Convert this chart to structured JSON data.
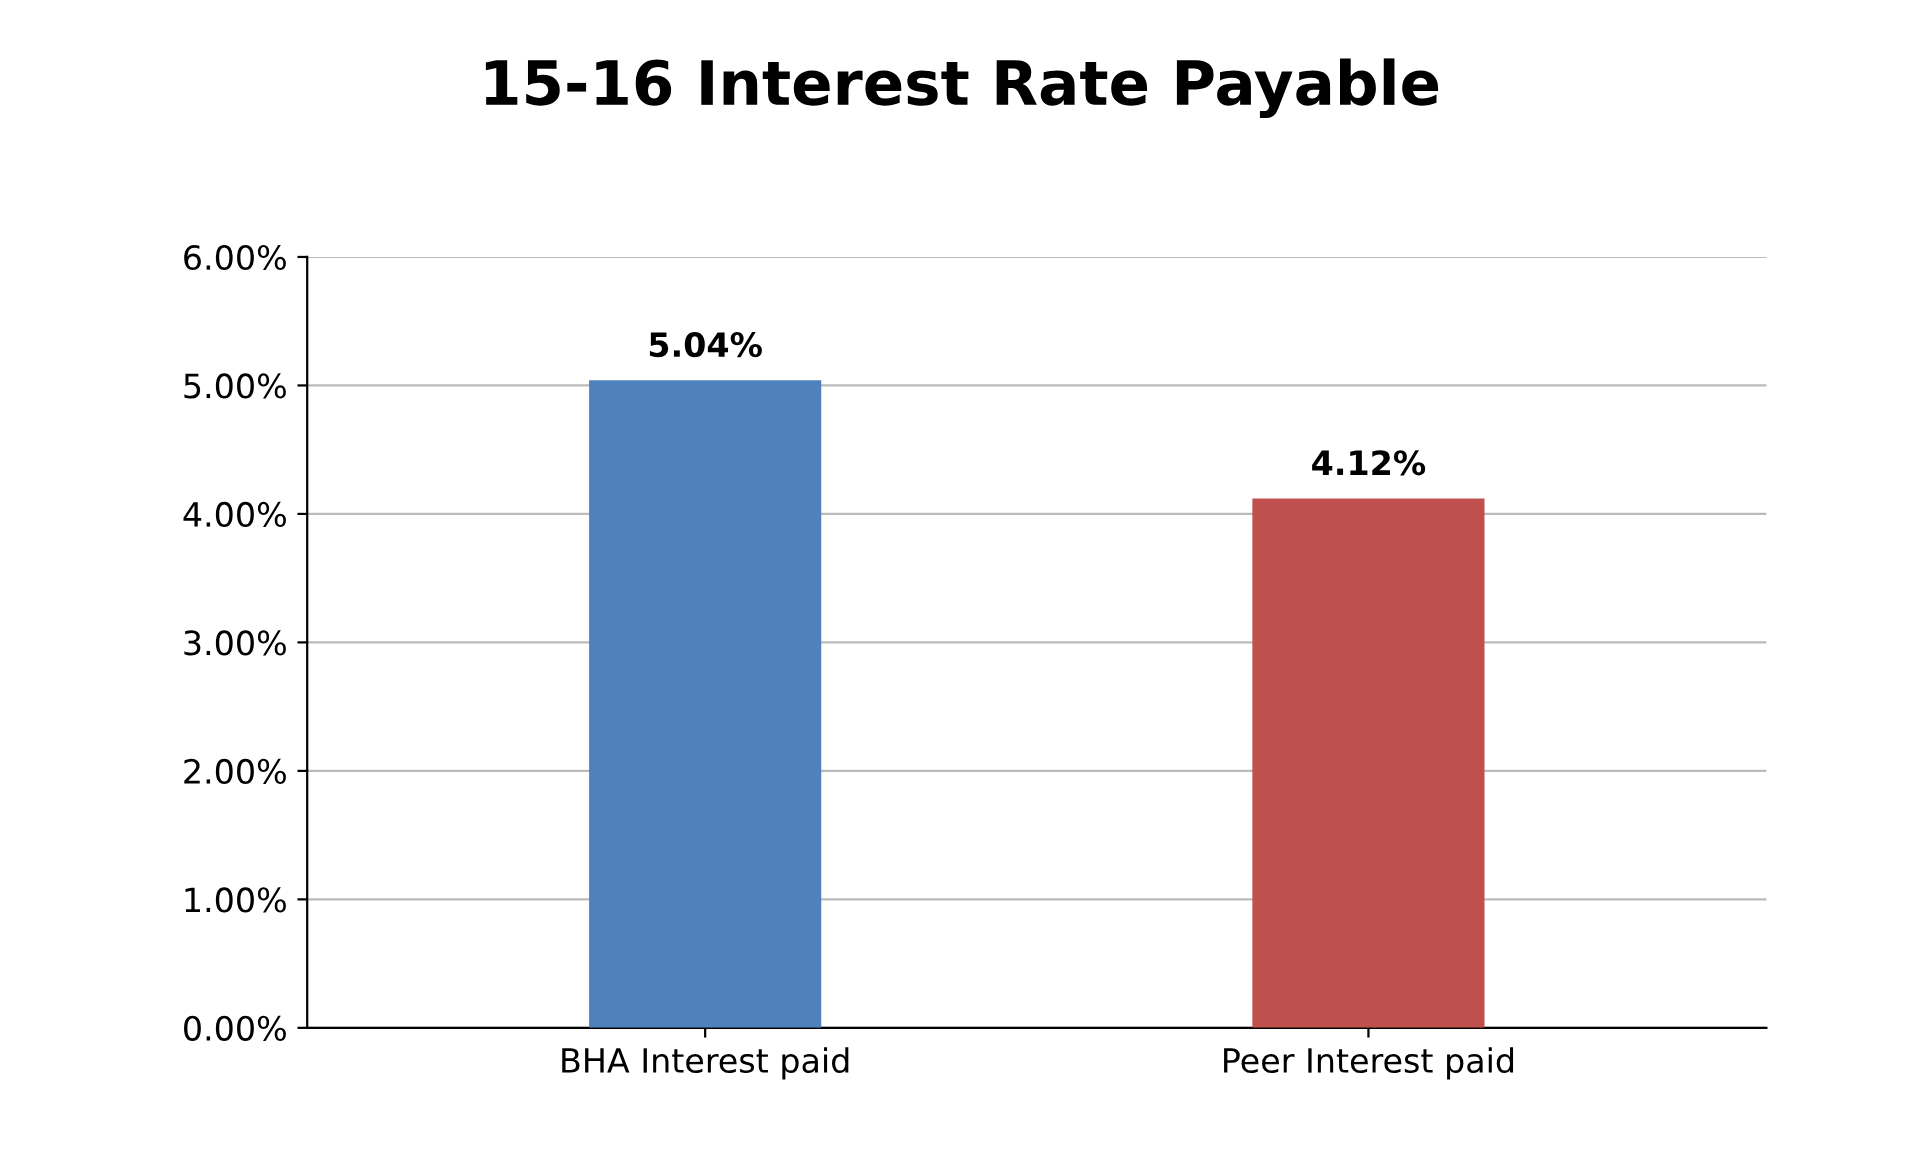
{
  "chart_data": {
    "type": "bar",
    "title": "15-16 Interest Rate Payable",
    "categories": [
      "BHA Interest paid",
      "Peer Interest paid"
    ],
    "values": [
      5.04,
      4.12
    ],
    "colors": [
      "#4f81bd",
      "#c0504d"
    ],
    "value_labels": [
      "5.04%",
      "4.12%"
    ],
    "ylim": [
      0,
      6
    ],
    "yticks": [
      {
        "value": 0,
        "label": "0.00%"
      },
      {
        "value": 1,
        "label": "1.00%"
      },
      {
        "value": 2,
        "label": "2.00%"
      },
      {
        "value": 3,
        "label": "3.00%"
      },
      {
        "value": 4,
        "label": "4.00%"
      },
      {
        "value": 5,
        "label": "5.00%"
      },
      {
        "value": 6,
        "label": "6.00%"
      }
    ],
    "grid": "y"
  }
}
